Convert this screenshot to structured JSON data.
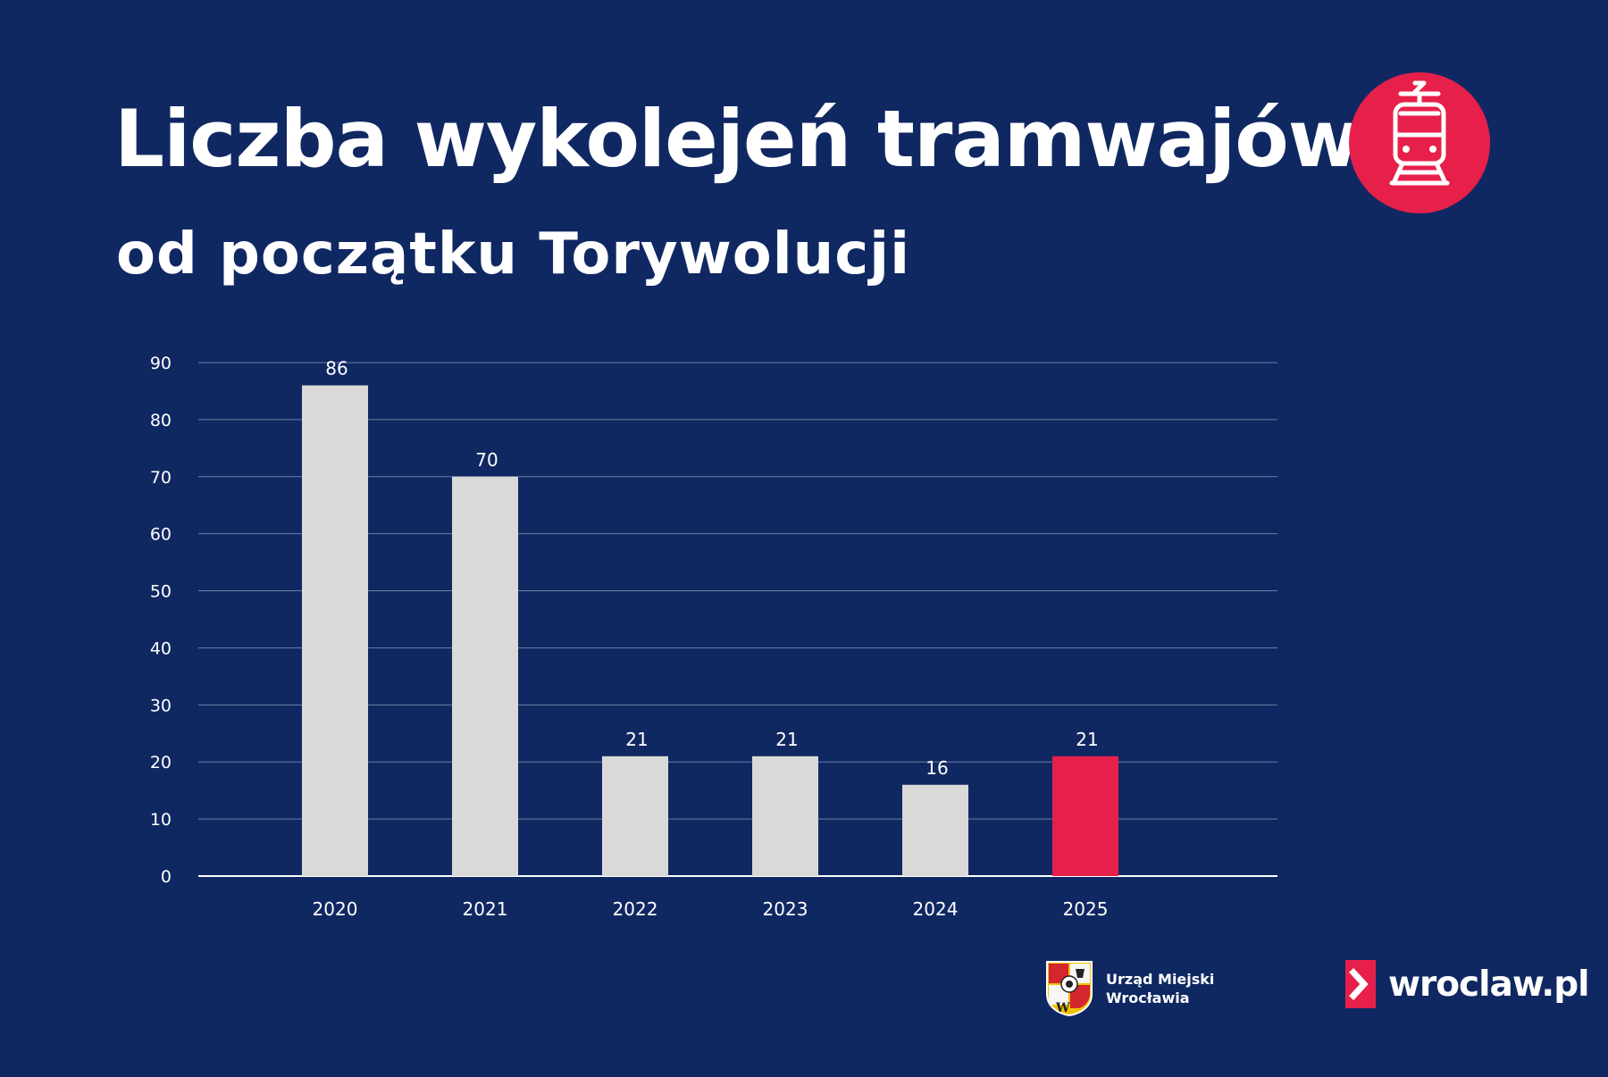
{
  "header": {
    "title": "Liczba wykolejeń tramwajów",
    "subtitle": "od początku Torywolucji",
    "icon": "tram-icon"
  },
  "colors": {
    "background": "#102862",
    "bar_default": "#d9d9d9",
    "bar_highlight": "#e6204a",
    "gridline": "#6c7da3",
    "text": "#ffffff"
  },
  "chart_data": {
    "type": "bar",
    "title": "",
    "xlabel": "",
    "ylabel": "",
    "categories": [
      "2020",
      "2021",
      "2022",
      "2023",
      "2024",
      "2025"
    ],
    "values": [
      86,
      70,
      21,
      21,
      16,
      21
    ],
    "data_labels": [
      "86",
      "70",
      "21",
      "21",
      "16",
      "21"
    ],
    "highlight": [
      false,
      false,
      false,
      false,
      false,
      true
    ],
    "ylim": [
      0,
      90
    ],
    "yticks": [
      0,
      10,
      20,
      30,
      40,
      50,
      60,
      70,
      80,
      90
    ],
    "grid": true,
    "legend": "none"
  },
  "footer": {
    "um_line1": "Urząd Miejski",
    "um_line2": "Wrocławia",
    "site": "wroclaw.pl"
  }
}
